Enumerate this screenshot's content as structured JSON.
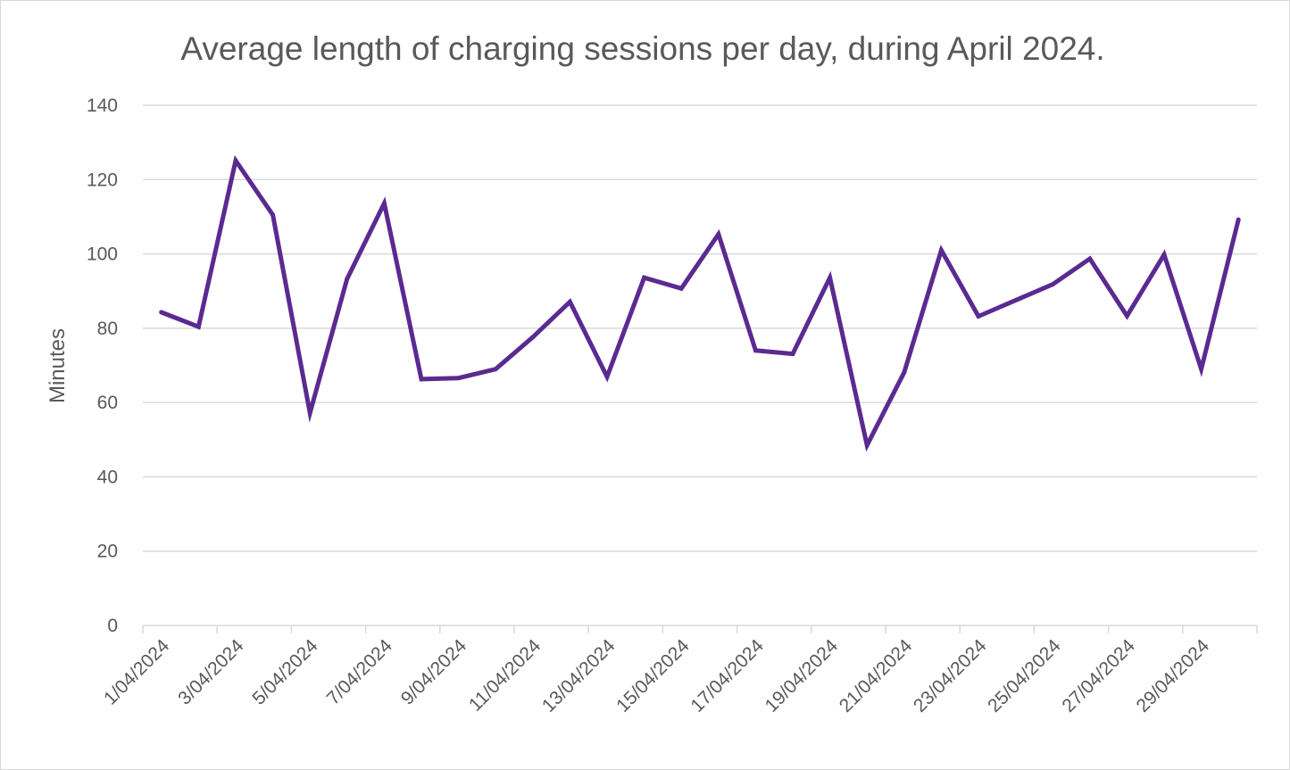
{
  "chart_data": {
    "type": "line",
    "title": "Average length of charging sessions per day, during April 2024.",
    "xlabel": "",
    "ylabel": "Minutes",
    "ylim": [
      0,
      140
    ],
    "yticks": [
      0,
      20,
      40,
      60,
      80,
      100,
      120,
      140
    ],
    "grid": true,
    "legend": "none",
    "x_tick_labels": [
      "1/04/2024",
      "3/04/2024",
      "5/04/2024",
      "7/04/2024",
      "9/04/2024",
      "11/04/2024",
      "13/04/2024",
      "15/04/2024",
      "17/04/2024",
      "19/04/2024",
      "21/04/2024",
      "23/04/2024",
      "25/04/2024",
      "27/04/2024",
      "29/04/2024"
    ],
    "categories": [
      "1/04/2024",
      "2/04/2024",
      "3/04/2024",
      "4/04/2024",
      "5/04/2024",
      "6/04/2024",
      "7/04/2024",
      "8/04/2024",
      "9/04/2024",
      "10/04/2024",
      "11/04/2024",
      "12/04/2024",
      "13/04/2024",
      "14/04/2024",
      "15/04/2024",
      "16/04/2024",
      "17/04/2024",
      "18/04/2024",
      "19/04/2024",
      "20/04/2024",
      "21/04/2024",
      "22/04/2024",
      "23/04/2024",
      "24/04/2024",
      "25/04/2024",
      "26/04/2024",
      "27/04/2024",
      "28/04/2024",
      "29/04/2024",
      "30/04/2024"
    ],
    "series": [
      {
        "name": "Average length",
        "color": "#5b2a91",
        "values": [
          84.3,
          80.4,
          125.1,
          110.5,
          57.2,
          93.3,
          113.6,
          66.3,
          66.6,
          69.0,
          77.6,
          87.1,
          66.9,
          93.6,
          90.7,
          105.3,
          74.0,
          73.1,
          93.6,
          48.5,
          68.1,
          101.0,
          83.2,
          87.5,
          91.8,
          98.7,
          83.3,
          99.8,
          69.0,
          109.2
        ]
      }
    ]
  }
}
